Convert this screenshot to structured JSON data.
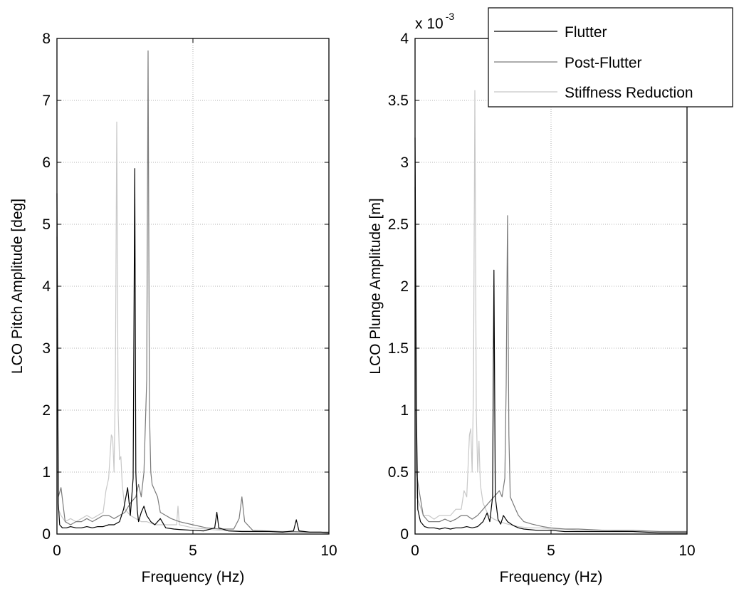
{
  "chart_data": [
    {
      "type": "line",
      "xlabel": "Frequency (Hz)",
      "ylabel": "LCO Pitch Amplitude [deg]",
      "xlim": [
        0,
        10
      ],
      "ylim": [
        0,
        8
      ],
      "xticks": [
        "0",
        "5",
        "10"
      ],
      "yticks": [
        "0",
        "1",
        "2",
        "3",
        "4",
        "5",
        "6",
        "7",
        "8"
      ],
      "grid": true,
      "series": [
        {
          "name": "Flutter",
          "color": "#000000",
          "x": [
            0,
            0.05,
            0.1,
            0.2,
            0.35,
            0.5,
            0.7,
            0.9,
            1.1,
            1.3,
            1.5,
            1.7,
            1.9,
            2.1,
            2.3,
            2.45,
            2.6,
            2.7,
            2.8,
            2.86,
            2.9,
            2.95,
            3.0,
            3.1,
            3.2,
            3.3,
            3.45,
            3.6,
            3.8,
            4.0,
            4.3,
            4.6,
            5.0,
            5.4,
            5.8,
            5.88,
            5.95,
            6.3,
            6.8,
            7.3,
            7.8,
            8.3,
            8.7,
            8.8,
            8.9,
            9.3,
            9.7,
            10
          ],
          "values": [
            5.5,
            0.5,
            0.15,
            0.1,
            0.1,
            0.12,
            0.1,
            0.1,
            0.12,
            0.1,
            0.12,
            0.12,
            0.15,
            0.15,
            0.2,
            0.4,
            0.75,
            0.3,
            0.9,
            5.9,
            1.0,
            0.4,
            0.2,
            0.35,
            0.45,
            0.3,
            0.2,
            0.15,
            0.25,
            0.1,
            0.08,
            0.07,
            0.06,
            0.05,
            0.1,
            0.35,
            0.1,
            0.05,
            0.04,
            0.04,
            0.04,
            0.03,
            0.05,
            0.23,
            0.05,
            0.03,
            0.03,
            0.02
          ]
        },
        {
          "name": "Post-Flutter",
          "color": "#7a7a7a",
          "x": [
            0,
            0.05,
            0.15,
            0.3,
            0.5,
            0.7,
            0.9,
            1.1,
            1.3,
            1.5,
            1.7,
            1.9,
            2.1,
            2.3,
            2.5,
            2.7,
            2.9,
            3.0,
            3.1,
            3.2,
            3.3,
            3.35,
            3.4,
            3.45,
            3.5,
            3.6,
            3.7,
            3.8,
            4.0,
            4.2,
            4.5,
            5.0,
            5.5,
            6.0,
            6.5,
            6.7,
            6.8,
            6.9,
            7.2,
            7.7,
            8.2,
            8.7,
            9.2,
            9.7,
            10
          ],
          "values": [
            4.8,
            0.6,
            0.75,
            0.2,
            0.15,
            0.2,
            0.2,
            0.25,
            0.2,
            0.25,
            0.3,
            0.3,
            0.25,
            0.3,
            0.35,
            0.5,
            0.6,
            0.8,
            0.6,
            1.0,
            2.5,
            7.8,
            2.0,
            1.0,
            0.8,
            0.7,
            0.6,
            0.35,
            0.3,
            0.25,
            0.2,
            0.15,
            0.1,
            0.08,
            0.08,
            0.25,
            0.6,
            0.2,
            0.06,
            0.05,
            0.04,
            0.04,
            0.03,
            0.03,
            0.03
          ]
        },
        {
          "name": "Stiffness Reduction",
          "color": "#c8c8c8",
          "x": [
            0,
            0.05,
            0.15,
            0.3,
            0.5,
            0.7,
            0.9,
            1.1,
            1.3,
            1.5,
            1.7,
            1.8,
            1.9,
            2.0,
            2.05,
            2.1,
            2.15,
            2.2,
            2.25,
            2.3,
            2.35,
            2.4,
            2.5,
            2.7,
            2.9,
            3.1,
            3.3,
            3.6,
            4.0,
            4.4,
            4.45,
            4.5,
            5.0,
            5.5,
            6.0,
            6.5,
            7.0,
            7.5,
            8.0,
            8.5,
            9.0,
            9.5,
            10
          ],
          "values": [
            3.5,
            0.4,
            0.3,
            0.2,
            0.25,
            0.2,
            0.25,
            0.3,
            0.25,
            0.3,
            0.35,
            0.7,
            0.9,
            1.6,
            1.55,
            1.0,
            2.5,
            6.65,
            2.0,
            1.2,
            1.25,
            0.8,
            0.4,
            0.3,
            0.25,
            0.2,
            0.2,
            0.15,
            0.15,
            0.15,
            0.45,
            0.15,
            0.1,
            0.08,
            0.06,
            0.05,
            0.05,
            0.04,
            0.04,
            0.03,
            0.03,
            0.03,
            0.03
          ]
        }
      ]
    },
    {
      "type": "line",
      "xlabel": "Frequency (Hz)",
      "ylabel": "LCO Plunge Amplitude [m]",
      "xlim": [
        0,
        10
      ],
      "ylim": [
        0,
        4
      ],
      "y_scale_label": "x 10",
      "y_scale_exponent": "-3",
      "xticks": [
        "0",
        "5",
        "10"
      ],
      "yticks": [
        "0",
        "0.5",
        "1",
        "1.5",
        "2",
        "2.5",
        "3",
        "3.5",
        "4"
      ],
      "grid": true,
      "legend": {
        "position": "top-right",
        "entries": [
          "Flutter",
          "Post-Flutter",
          "Stiffness Reduction"
        ]
      },
      "series": [
        {
          "name": "Flutter",
          "color": "#000000",
          "x": [
            0,
            0.05,
            0.1,
            0.2,
            0.35,
            0.5,
            0.7,
            0.9,
            1.1,
            1.3,
            1.5,
            1.7,
            1.9,
            2.1,
            2.3,
            2.5,
            2.65,
            2.75,
            2.85,
            2.9,
            2.95,
            3.05,
            3.15,
            3.25,
            3.4,
            3.6,
            3.8,
            4.0,
            4.5,
            5.0,
            5.5,
            6.0,
            7.0,
            8.0,
            9.0,
            10
          ],
          "values": [
            3.2,
            1.0,
            0.2,
            0.1,
            0.06,
            0.05,
            0.05,
            0.04,
            0.05,
            0.04,
            0.05,
            0.05,
            0.06,
            0.05,
            0.06,
            0.1,
            0.17,
            0.1,
            0.3,
            2.13,
            0.3,
            0.12,
            0.08,
            0.15,
            0.1,
            0.07,
            0.05,
            0.04,
            0.03,
            0.03,
            0.02,
            0.02,
            0.02,
            0.02,
            0.01,
            0.01
          ]
        },
        {
          "name": "Post-Flutter",
          "color": "#7a7a7a",
          "x": [
            0,
            0.05,
            0.15,
            0.3,
            0.5,
            0.7,
            0.9,
            1.1,
            1.3,
            1.5,
            1.7,
            1.9,
            2.1,
            2.3,
            2.5,
            2.7,
            2.9,
            3.1,
            3.2,
            3.3,
            3.35,
            3.4,
            3.45,
            3.5,
            3.6,
            3.7,
            3.8,
            4.0,
            4.3,
            4.7,
            5.0,
            5.5,
            6.0,
            7.0,
            8.0,
            9.0,
            10
          ],
          "values": [
            2.8,
            0.5,
            0.35,
            0.15,
            0.1,
            0.1,
            0.1,
            0.12,
            0.1,
            0.12,
            0.15,
            0.15,
            0.12,
            0.15,
            0.2,
            0.25,
            0.3,
            0.35,
            0.3,
            0.45,
            1.2,
            2.57,
            0.8,
            0.3,
            0.25,
            0.2,
            0.15,
            0.1,
            0.08,
            0.06,
            0.05,
            0.04,
            0.04,
            0.03,
            0.03,
            0.02,
            0.02
          ]
        },
        {
          "name": "Stiffness Reduction",
          "color": "#c8c8c8",
          "x": [
            0,
            0.05,
            0.15,
            0.3,
            0.5,
            0.7,
            0.9,
            1.1,
            1.3,
            1.5,
            1.7,
            1.8,
            1.9,
            2.0,
            2.05,
            2.1,
            2.15,
            2.2,
            2.25,
            2.3,
            2.35,
            2.4,
            2.5,
            2.7,
            2.9,
            3.1,
            3.4,
            3.8,
            4.2,
            4.6,
            5.0,
            5.5,
            6.0,
            7.0,
            8.0,
            9.0,
            10
          ],
          "values": [
            2.9,
            0.3,
            0.25,
            0.15,
            0.15,
            0.12,
            0.15,
            0.15,
            0.15,
            0.2,
            0.2,
            0.35,
            0.3,
            0.8,
            0.85,
            0.5,
            1.2,
            3.58,
            1.0,
            0.5,
            0.75,
            0.4,
            0.25,
            0.15,
            0.12,
            0.1,
            0.08,
            0.06,
            0.05,
            0.05,
            0.04,
            0.04,
            0.03,
            0.03,
            0.02,
            0.02,
            0.02
          ]
        }
      ]
    }
  ]
}
